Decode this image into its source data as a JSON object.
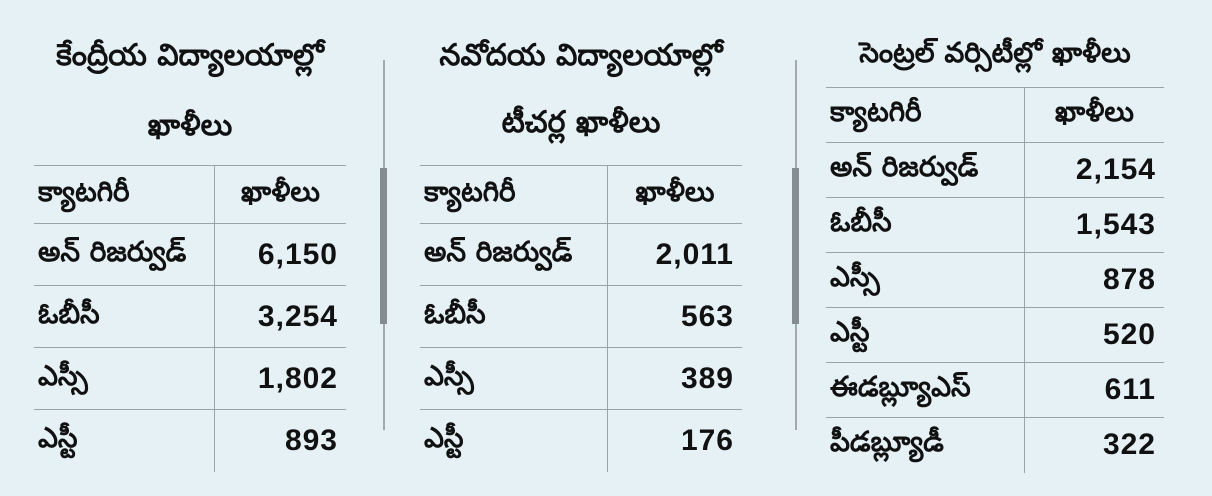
{
  "panels": [
    {
      "title_line1": "కేంద్రీయ విద్యాలయాల్లో",
      "title_line2": "ఖాళీలు",
      "header": {
        "category": "క్యాటగిరీ",
        "vacancies": "ఖాళీలు"
      },
      "rows": [
        {
          "category": "అన్ రిజర్వుడ్",
          "value": "6,150"
        },
        {
          "category": "ఓబీసీ",
          "value": "3,254"
        },
        {
          "category": "ఎస్సీ",
          "value": "1,802"
        },
        {
          "category": "ఎస్టీ",
          "value": "893"
        }
      ]
    },
    {
      "title_line1": "నవోదయ విద్యాలయాల్లో",
      "title_line2": "టీచర్ల ఖాళీలు",
      "header": {
        "category": "క్యాటగిరీ",
        "vacancies": "ఖాళీలు"
      },
      "rows": [
        {
          "category": "అన్ రిజర్వుడ్",
          "value": "2,011"
        },
        {
          "category": "ఓబీసీ",
          "value": "563"
        },
        {
          "category": "ఎస్సీ",
          "value": "389"
        },
        {
          "category": "ఎస్టీ",
          "value": "176"
        }
      ]
    },
    {
      "title_line1": "సెంట్రల్ వర్సిటీల్లో ఖాళీలు",
      "header": {
        "category": "క్యాటగిరీ",
        "vacancies": "ఖాళీలు"
      },
      "rows": [
        {
          "category": "అన్ రిజర్వుడ్",
          "value": "2,154"
        },
        {
          "category": "ఓబీసీ",
          "value": "1,543"
        },
        {
          "category": "ఎస్సీ",
          "value": "878"
        },
        {
          "category": "ఎస్టీ",
          "value": "520"
        },
        {
          "category": "ఈడబ్ల్యూఎస్",
          "value": "611"
        },
        {
          "category": "పీడబ్ల్యూడీ",
          "value": "322"
        }
      ]
    }
  ]
}
